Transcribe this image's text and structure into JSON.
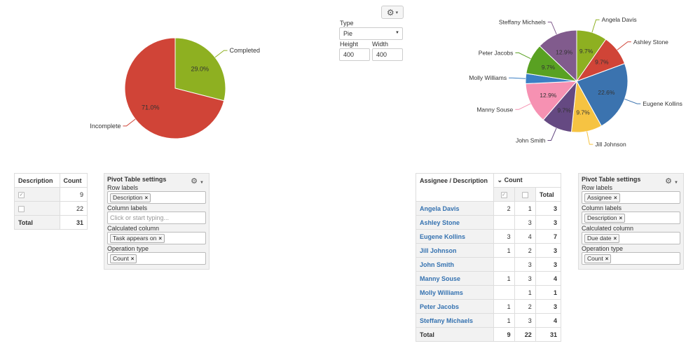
{
  "charts_gear": {
    "icon": "gear-icon",
    "caret": "▾"
  },
  "chart_form": {
    "type_label": "Type",
    "type_value": "Pie",
    "height_label": "Height",
    "height_value": "400",
    "width_label": "Width",
    "width_value": "400"
  },
  "chart_data": [
    {
      "type": "pie",
      "labels": [
        "Completed",
        "Incomplete"
      ],
      "values": [
        29.0,
        71.0
      ],
      "value_labels": [
        "29.0%",
        "71.0%"
      ],
      "colors": [
        "#8eb021",
        "#d04437"
      ]
    },
    {
      "type": "pie",
      "labels": [
        "Angela Davis",
        "Ashley Stone",
        "Eugene Kollins",
        "Jill Johnson",
        "John Smith",
        "Manny Souse",
        "Molly Williams",
        "Peter Jacobs",
        "Steffany Michaels"
      ],
      "values": [
        9.7,
        9.7,
        22.6,
        9.7,
        9.7,
        12.9,
        3.2,
        9.7,
        12.9
      ],
      "value_labels": [
        "9.7%",
        "9.7%",
        "22.6%",
        "9.7%",
        "9.7%",
        "12.9%",
        "",
        "9.7%",
        "12.9%"
      ],
      "colors": [
        "#8eb021",
        "#d04437",
        "#3b73af",
        "#f6c342",
        "#654982",
        "#f691b2",
        "#3b7fc4",
        "#59a122",
        "#815b8d"
      ]
    }
  ],
  "left_table": {
    "headers": [
      "Description",
      "Count"
    ],
    "rows": [
      {
        "checked": true,
        "count": "9"
      },
      {
        "checked": false,
        "count": "22"
      }
    ],
    "total_label": "Total",
    "total_value": "31"
  },
  "left_settings": {
    "title": "Pivot Table settings",
    "row_labels_label": "Row labels",
    "row_labels_tag": "Description",
    "column_labels_label": "Column labels",
    "column_labels_placeholder": "Click or start typing...",
    "calc_column_label": "Calculated column",
    "calc_column_tag": "Task appears on",
    "operation_label": "Operation type",
    "operation_tag": "Count",
    "remove_glyph": "×"
  },
  "right_table": {
    "corner_label": "Assignee / Description",
    "group_label": "Count",
    "group_toggle": "⌄",
    "total_header": "Total",
    "rows": [
      {
        "name": "Angela Davis",
        "checked": "2",
        "unchecked": "1",
        "total": "3"
      },
      {
        "name": "Ashley Stone",
        "checked": "",
        "unchecked": "3",
        "total": "3"
      },
      {
        "name": "Eugene Kollins",
        "checked": "3",
        "unchecked": "4",
        "total": "7"
      },
      {
        "name": "Jill Johnson",
        "checked": "1",
        "unchecked": "2",
        "total": "3"
      },
      {
        "name": "John Smith",
        "checked": "",
        "unchecked": "3",
        "total": "3"
      },
      {
        "name": "Manny Souse",
        "checked": "1",
        "unchecked": "3",
        "total": "4"
      },
      {
        "name": "Molly Williams",
        "checked": "",
        "unchecked": "1",
        "total": "1"
      },
      {
        "name": "Peter Jacobs",
        "checked": "1",
        "unchecked": "2",
        "total": "3"
      },
      {
        "name": "Steffany Michaels",
        "checked": "1",
        "unchecked": "3",
        "total": "4"
      }
    ],
    "total_label": "Total",
    "total_checked": "9",
    "total_unchecked": "22",
    "total_all": "31"
  },
  "right_settings": {
    "title": "Pivot Table settings",
    "row_labels_label": "Row labels",
    "row_labels_tag": "Assignee",
    "column_labels_label": "Column labels",
    "column_labels_tag": "Description",
    "calc_column_label": "Calculated column",
    "calc_column_tag": "Due date",
    "operation_label": "Operation type",
    "operation_tag": "Count",
    "remove_glyph": "×"
  }
}
